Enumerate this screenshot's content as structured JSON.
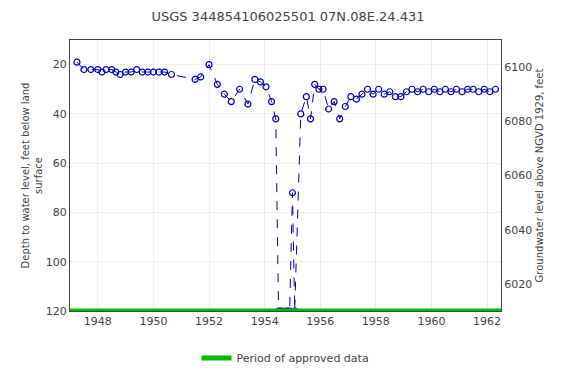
{
  "chart_data": {
    "type": "line",
    "title": "USGS 344854106025501 07N.08E.24.431",
    "ylabel": "Depth to water level, feet below land\nsurface",
    "y2label": "Groundwater level above NGVD 1929, feet",
    "x": [
      1947.25,
      1947.5,
      1947.75,
      1948.0,
      1948.15,
      1948.3,
      1948.5,
      1948.65,
      1948.8,
      1949.0,
      1949.2,
      1949.4,
      1949.6,
      1949.8,
      1950.0,
      1950.2,
      1950.4,
      1950.65,
      1951.5,
      1951.7,
      1952.0,
      1952.3,
      1952.55,
      1952.8,
      1953.1,
      1953.4,
      1953.65,
      1953.85,
      1954.05,
      1954.25,
      1954.4,
      1954.5,
      1954.57,
      1954.63,
      1954.75,
      1954.82,
      1954.9,
      1955.0,
      1955.08,
      1955.3,
      1955.5,
      1955.65,
      1955.8,
      1955.95,
      1956.1,
      1956.3,
      1956.5,
      1956.7,
      1956.9,
      1957.1,
      1957.3,
      1957.5,
      1957.7,
      1957.9,
      1958.1,
      1958.3,
      1958.5,
      1958.7,
      1958.9,
      1959.1,
      1959.3,
      1959.5,
      1959.7,
      1959.9,
      1960.1,
      1960.3,
      1960.5,
      1960.7,
      1960.9,
      1961.1,
      1961.3,
      1961.5,
      1961.7,
      1961.9,
      1962.1,
      1962.3
    ],
    "values": [
      19,
      22,
      22,
      22,
      23,
      22,
      22,
      23,
      24,
      23,
      23,
      22,
      23,
      23,
      23,
      23,
      23,
      24,
      26,
      25,
      20,
      28,
      32,
      35,
      30,
      36,
      26,
      27,
      29,
      35,
      42,
      120,
      120,
      120,
      120,
      120,
      120,
      72,
      120,
      40,
      33,
      42,
      28,
      30,
      30,
      38,
      35,
      42,
      37,
      33,
      34,
      32,
      30,
      32,
      30,
      32,
      31,
      33,
      33,
      31,
      30,
      31,
      30,
      31,
      30,
      31,
      30,
      31,
      30,
      31,
      30,
      30,
      31,
      30,
      31,
      30
    ],
    "color": "#0000bb",
    "line_style": "dashed",
    "marker": "open_circle",
    "reference_lines": [
      {
        "y": 120,
        "name": "Period of approved data",
        "color": "#00bb00"
      }
    ],
    "xlim": [
      1947.0,
      1962.5
    ],
    "xticks": [
      1948,
      1950,
      1952,
      1954,
      1956,
      1958,
      1960,
      1962
    ],
    "ylim": [
      120,
      10
    ],
    "yticks": [
      20,
      40,
      60,
      80,
      100,
      120
    ],
    "y2lim": [
      6010,
      6110
    ],
    "y2ticks": [
      6020,
      6040,
      6060,
      6080,
      6100
    ],
    "grid": true,
    "legend": "bottom"
  }
}
